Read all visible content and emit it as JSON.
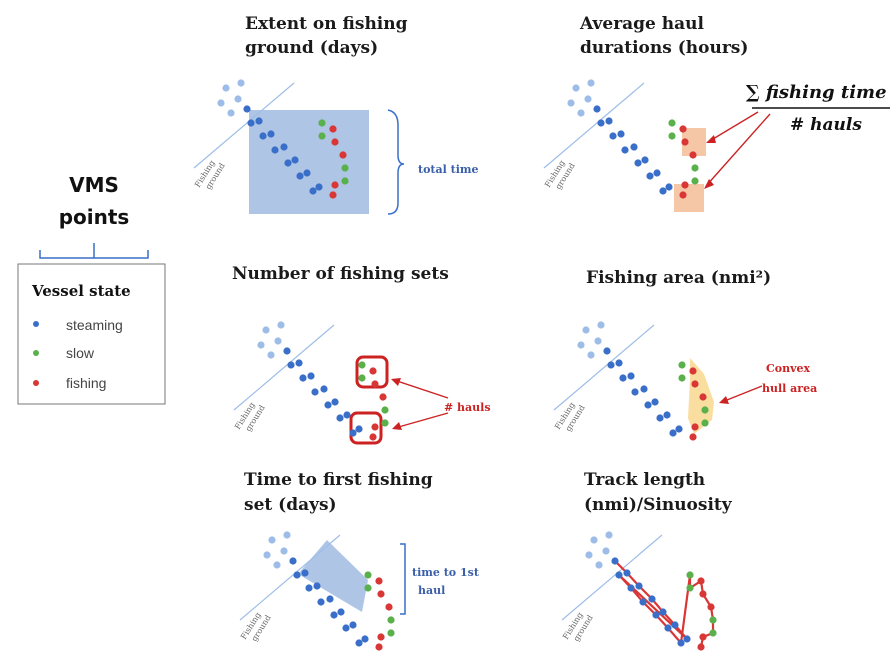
{
  "legend": {
    "title_line1": "VMS",
    "title_line2": "points",
    "box_title": "Vessel state",
    "items": [
      {
        "label": "steaming",
        "color": "#3a6fc9"
      },
      {
        "label": "slow",
        "color": "#5ab04b"
      },
      {
        "label": "fishing",
        "color": "#d93636"
      }
    ]
  },
  "panels": {
    "extent": {
      "title_line1": "Extent on fishing",
      "title_line2": "ground (days)",
      "annotation": "total time"
    },
    "haul_duration": {
      "title_line1": "Average haul",
      "title_line2": "durations (hours)",
      "formula_num": "∑ fishing time",
      "formula_den": "# hauls"
    },
    "fishing_sets": {
      "title_line1": "Number of fishing sets",
      "annotation": "# hauls"
    },
    "fishing_area": {
      "title_line1": "Fishing area (nmi²)",
      "annotation_line1": "Convex",
      "annotation_line2": "hull area"
    },
    "time_first": {
      "title_line1": "Time to first fishing",
      "title_line2": "set (days)",
      "annotation_line1": "time to 1st",
      "annotation_line2": "haul"
    },
    "track_length": {
      "title_line1": "Track length",
      "title_line2": "(nmi)/Sinuosity"
    }
  },
  "ground_label_line1": "Fishing",
  "ground_label_line2": "ground",
  "colors": {
    "steaming": "#3a6fc9",
    "steaming_light": "#9dbde8",
    "slow": "#5ab04b",
    "fishing": "#d93636",
    "accent_text_blue": "#3a5fa8",
    "accent_text_red": "#cc2222"
  }
}
